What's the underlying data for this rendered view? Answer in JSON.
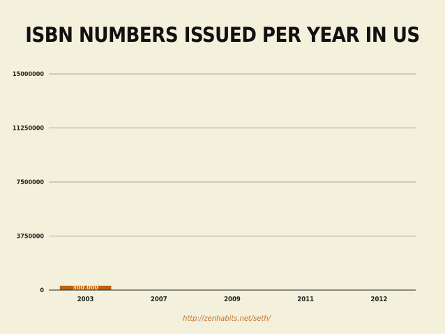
{
  "chart_data": {
    "type": "bar",
    "title": "ISBN NUMBERS ISSUED PER YEAR IN US",
    "categories": [
      "2003",
      "2007",
      "2009",
      "2011",
      "2012"
    ],
    "series": [
      {
        "values": [
          300000,
          null,
          null,
          null,
          null
        ],
        "labels": [
          "300,000",
          "",
          "",
          "",
          ""
        ]
      }
    ],
    "ylim": [
      0,
      15000000
    ],
    "yticks": [
      0,
      3750000,
      7500000,
      11250000,
      15000000
    ],
    "ytick_labels": [
      "0",
      "3750000",
      "7500000",
      "11250000",
      "15000000"
    ],
    "grid": true,
    "bar_color": "#c0640c",
    "source": "http://zenhabits.net/seth/"
  }
}
